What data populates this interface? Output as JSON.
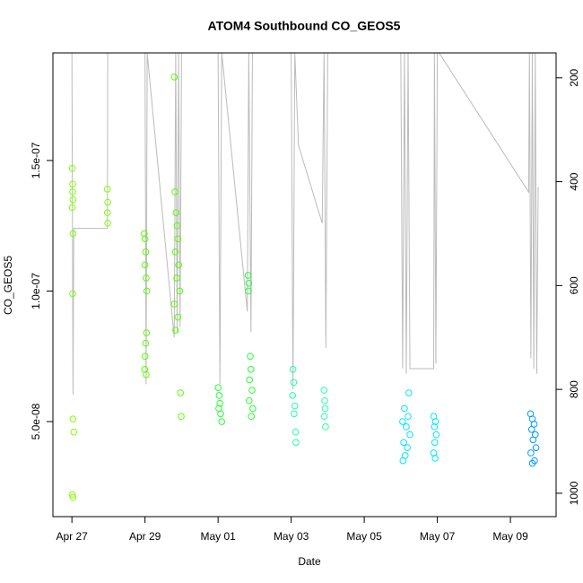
{
  "chart_data": {
    "type": "scatter",
    "title": "ATOM4 Southbound CO_GEOS5",
    "xlabel": "Date",
    "ylabel": "CO_GEOS5",
    "xlim": [
      -0.52,
      13.25
    ],
    "ylim": [
      1.36e-08,
      1.912e-07
    ],
    "y2lim": [
      1045,
      152
    ],
    "xticks": [
      {
        "value": 0,
        "label": "Apr 27"
      },
      {
        "value": 2,
        "label": "Apr 29"
      },
      {
        "value": 4,
        "label": "May 01"
      },
      {
        "value": 6,
        "label": "May 03"
      },
      {
        "value": 8,
        "label": "May 05"
      },
      {
        "value": 10,
        "label": "May 07"
      },
      {
        "value": 12,
        "label": "May 09"
      }
    ],
    "yticks": [
      {
        "value": 5e-08,
        "label": "5.0e-08"
      },
      {
        "value": 1e-07,
        "label": "1.0e-07"
      },
      {
        "value": 1.5e-07,
        "label": "1.5e-07"
      }
    ],
    "y2ticks": [
      200,
      400,
      600,
      800,
      1000
    ],
    "series": [
      {
        "color": "#80ff00",
        "x": [
          0.01,
          0.02,
          0.02,
          0.03,
          0.01,
          0.03,
          0.02,
          0.03,
          0.05,
          0.01,
          0.03,
          0.97,
          0.98,
          0.97,
          0.98
        ],
        "values": [
          1.47e-07,
          1.41e-07,
          1.38e-07,
          1.35e-07,
          1.32e-07,
          1.22e-07,
          9.9e-08,
          5.1e-08,
          4.6e-08,
          2.2e-08,
          2.1e-08,
          1.39e-07,
          1.34e-07,
          1.3e-07,
          1.26e-07
        ]
      },
      {
        "color": "#55ff00",
        "x": [
          1.98,
          2.0,
          2.02,
          2.0,
          2.03,
          2.05,
          2.04,
          2.02,
          2.0,
          1.99,
          2.03,
          2.8,
          2.82,
          2.85,
          2.88,
          2.9,
          2.83,
          2.92,
          2.87,
          2.95,
          2.8,
          2.9,
          2.84,
          2.97,
          2.99
        ],
        "values": [
          1.22e-07,
          1.2e-07,
          1.15e-07,
          1.1e-07,
          1.05e-07,
          1e-07,
          8.4e-08,
          8e-08,
          7.5e-08,
          7e-08,
          6.8e-08,
          1.82e-07,
          1.38e-07,
          1.3e-07,
          1.25e-07,
          1.2e-07,
          1.15e-07,
          1.1e-07,
          1.05e-07,
          1e-07,
          9.5e-08,
          9e-08,
          8.5e-08,
          6.1e-08,
          5.2e-08
        ]
      },
      {
        "color": "#22ff33",
        "x": [
          4.0,
          4.03,
          4.05,
          4.02,
          4.07,
          4.1,
          4.82,
          4.84,
          4.83,
          4.88,
          4.9,
          4.86,
          4.93,
          4.85,
          4.95,
          4.91
        ],
        "values": [
          6.3e-08,
          6e-08,
          5.7e-08,
          5.5e-08,
          5.3e-08,
          5e-08,
          1.06e-07,
          1.03e-07,
          1e-07,
          7.5e-08,
          7e-08,
          6.6e-08,
          6.2e-08,
          5.8e-08,
          5.5e-08,
          5.2e-08
        ]
      },
      {
        "color": "#22ffaa",
        "x": [
          6.05,
          6.07,
          6.04,
          6.1,
          6.08,
          6.12,
          6.13,
          6.9,
          6.92,
          6.93,
          6.91,
          6.94
        ],
        "values": [
          7e-08,
          6.5e-08,
          6e-08,
          5.6e-08,
          5.3e-08,
          4.6e-08,
          4.2e-08,
          6.2e-08,
          5.8e-08,
          5.5e-08,
          5.2e-08,
          4.8e-08
        ]
      },
      {
        "color": "#00e5ff",
        "x": [
          9.22,
          9.1,
          9.2,
          9.05,
          9.15,
          9.25,
          9.08,
          9.18,
          9.12,
          9.06,
          9.9,
          9.95,
          9.92,
          9.97,
          9.93,
          9.9,
          9.94
        ],
        "values": [
          6.1e-08,
          5.5e-08,
          5.2e-08,
          5e-08,
          4.8e-08,
          4.5e-08,
          4.2e-08,
          4e-08,
          3.7e-08,
          3.5e-08,
          5.2e-08,
          5e-08,
          4.8e-08,
          4.5e-08,
          4.2e-08,
          3.8e-08,
          3.6e-08
        ]
      },
      {
        "color": "#0099ff",
        "x": [
          12.55,
          12.6,
          12.65,
          12.58,
          12.68,
          12.62,
          12.7,
          12.56,
          12.66,
          12.6
        ],
        "values": [
          5.3e-08,
          5.1e-08,
          4.9e-08,
          4.7e-08,
          4.5e-08,
          4.3e-08,
          4e-08,
          3.8e-08,
          3.5e-08,
          3.4e-08
        ]
      },
      {
        "type": "line",
        "axis": "y2",
        "color": "#bbbbbb",
        "x": [
          0.0,
          0.03,
          0.05,
          0.97,
          0.98,
          2.0,
          2.03,
          2.06,
          2.8,
          2.84,
          2.88,
          2.92,
          2.96,
          3.0,
          4.0,
          4.05,
          4.1,
          4.8,
          4.84,
          4.9,
          4.94,
          6.0,
          6.05,
          6.1,
          6.2,
          6.85,
          6.9,
          6.95,
          7.0,
          9.0,
          9.05,
          9.1,
          9.15,
          9.2,
          9.25,
          9.9,
          9.92,
          9.96,
          10.0,
          10.05,
          12.5,
          12.52,
          12.56,
          12.6,
          12.64,
          12.68,
          12.72,
          12.76
        ],
        "values": [
          152,
          810,
          490,
          490,
          152,
          152,
          790,
          152,
          700,
          152,
          690,
          152,
          680,
          152,
          152,
          790,
          152,
          650,
          152,
          690,
          152,
          152,
          800,
          152,
          330,
          480,
          152,
          720,
          152,
          152,
          760,
          152,
          770,
          152,
          760,
          760,
          152,
          750,
          152,
          152,
          420,
          152,
          740,
          152,
          760,
          152,
          770,
          410
        ]
      }
    ]
  }
}
